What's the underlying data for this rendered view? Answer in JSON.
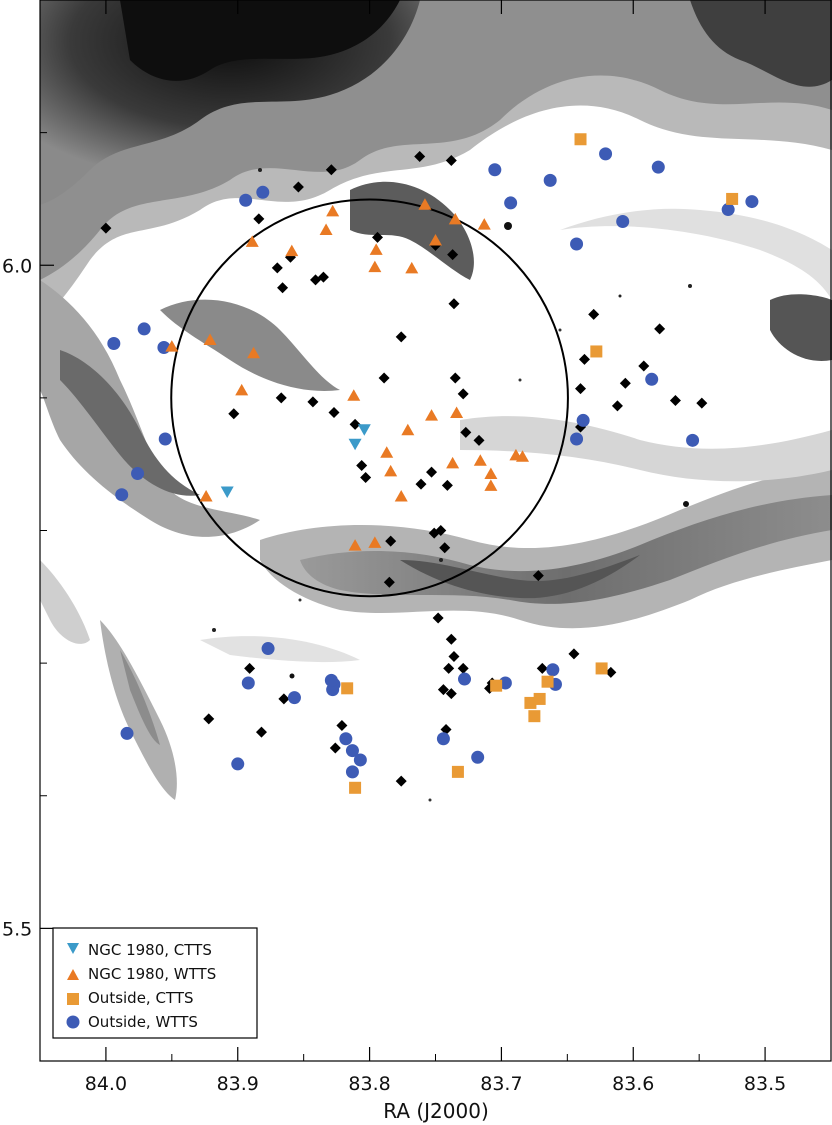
{
  "chart_data": {
    "type": "scatter",
    "title": "",
    "xlabel": "RA (J2000)",
    "ylabel": "",
    "xlim": [
      84.05,
      83.45
    ],
    "ylim": [
      6.2,
      5.4
    ],
    "x_ticks": [
      {
        "value": 84.0,
        "label": "84.0"
      },
      {
        "value": 83.9,
        "label": "83.9"
      },
      {
        "value": 83.8,
        "label": "83.8"
      },
      {
        "value": 83.7,
        "label": "83.7"
      },
      {
        "value": 83.6,
        "label": "83.6"
      },
      {
        "value": 83.5,
        "label": "83.5"
      }
    ],
    "y_ticks": [
      {
        "value": 5.5,
        "label": "5.5"
      },
      {
        "value": 6.0,
        "label": "6.0"
      }
    ],
    "grid": false,
    "background": "grayscale nebula image",
    "circle": {
      "center_x": 83.8,
      "center_y": 5.9,
      "radius_deg": 0.15
    },
    "legend": {
      "position": "bottom-left",
      "entries": [
        "NGC 1980, CTTS",
        "NGC 1980, WTTS",
        "Outside, CTTS",
        "Outside, WTTS"
      ]
    },
    "colors": {
      "ctts_ngc": "#3b9ac9",
      "wtts_ngc": "#e97a24",
      "ctts_out": "#e99a35",
      "wtts_out": "#3d5bb5",
      "other": "#000000"
    },
    "series": [
      {
        "name": "NGC 1980, CTTS",
        "marker": "triangle-down",
        "color": "#3b9ac9",
        "points": [
          [
            83.908,
            5.829
          ],
          [
            83.811,
            5.865
          ],
          [
            83.804,
            5.876
          ]
        ]
      },
      {
        "name": "NGC 1980, WTTS",
        "marker": "triangle-up",
        "color": "#e97a24",
        "points": [
          [
            83.924,
            5.826
          ],
          [
            83.811,
            5.789
          ],
          [
            83.796,
            5.791
          ],
          [
            83.776,
            5.826
          ],
          [
            83.784,
            5.845
          ],
          [
            83.787,
            5.859
          ],
          [
            83.771,
            5.876
          ],
          [
            83.753,
            5.887
          ],
          [
            83.737,
            5.851
          ],
          [
            83.716,
            5.853
          ],
          [
            83.708,
            5.834
          ],
          [
            83.708,
            5.843
          ],
          [
            83.689,
            5.857
          ],
          [
            83.684,
            5.856
          ],
          [
            83.734,
            5.889
          ],
          [
            83.812,
            5.902
          ],
          [
            83.897,
            5.906
          ],
          [
            83.95,
            5.939
          ],
          [
            83.888,
            5.934
          ],
          [
            83.921,
            5.944
          ],
          [
            83.796,
            5.999
          ],
          [
            83.768,
            5.998
          ],
          [
            83.859,
            6.011
          ],
          [
            83.795,
            6.012
          ],
          [
            83.889,
            6.018
          ],
          [
            83.75,
            6.019
          ],
          [
            83.833,
            6.027
          ],
          [
            83.713,
            6.031
          ],
          [
            83.735,
            6.035
          ],
          [
            83.828,
            6.041
          ],
          [
            83.758,
            6.046
          ]
        ]
      },
      {
        "name": "Outside, CTTS",
        "marker": "square",
        "color": "#e99a35",
        "points": [
          [
            83.811,
            5.606
          ],
          [
            83.733,
            5.618
          ],
          [
            83.675,
            5.66
          ],
          [
            83.678,
            5.67
          ],
          [
            83.671,
            5.673
          ],
          [
            83.704,
            5.683
          ],
          [
            83.817,
            5.681
          ],
          [
            83.665,
            5.686
          ],
          [
            83.624,
            5.696
          ],
          [
            83.628,
            5.935
          ],
          [
            83.525,
            6.05
          ],
          [
            83.64,
            6.095
          ]
        ]
      },
      {
        "name": "Outside, WTTS",
        "marker": "circle",
        "color": "#3d5bb5",
        "points": [
          [
            83.813,
            5.618
          ],
          [
            83.807,
            5.627
          ],
          [
            83.813,
            5.634
          ],
          [
            83.718,
            5.629
          ],
          [
            83.9,
            5.624
          ],
          [
            83.818,
            5.643
          ],
          [
            83.744,
            5.643
          ],
          [
            83.984,
            5.647
          ],
          [
            83.857,
            5.674
          ],
          [
            83.828,
            5.68
          ],
          [
            83.827,
            5.684
          ],
          [
            83.829,
            5.687
          ],
          [
            83.892,
            5.685
          ],
          [
            83.697,
            5.685
          ],
          [
            83.728,
            5.688
          ],
          [
            83.659,
            5.684
          ],
          [
            83.661,
            5.695
          ],
          [
            83.877,
            5.711
          ],
          [
            83.988,
            5.827
          ],
          [
            83.976,
            5.843
          ],
          [
            83.955,
            5.869
          ],
          [
            83.643,
            5.869
          ],
          [
            83.555,
            5.868
          ],
          [
            83.638,
            5.883
          ],
          [
            83.586,
            5.914
          ],
          [
            83.956,
            5.938
          ],
          [
            83.994,
            5.941
          ],
          [
            83.971,
            5.952
          ],
          [
            83.643,
            6.016
          ],
          [
            83.608,
            6.033
          ],
          [
            83.528,
            6.042
          ],
          [
            83.51,
            6.048
          ],
          [
            83.693,
            6.047
          ],
          [
            83.894,
            6.049
          ],
          [
            83.881,
            6.055
          ],
          [
            83.663,
            6.064
          ],
          [
            83.705,
            6.072
          ],
          [
            83.581,
            6.074
          ],
          [
            83.621,
            6.084
          ]
        ]
      },
      {
        "name": "",
        "marker": "diamond",
        "color": "#000000",
        "points": [
          [
            83.776,
            5.611
          ],
          [
            83.826,
            5.636
          ],
          [
            83.922,
            5.658
          ],
          [
            83.882,
            5.648
          ],
          [
            83.821,
            5.653
          ],
          [
            83.742,
            5.65
          ],
          [
            83.865,
            5.673
          ],
          [
            83.738,
            5.677
          ],
          [
            83.707,
            5.685
          ],
          [
            83.744,
            5.68
          ],
          [
            83.709,
            5.681
          ],
          [
            83.891,
            5.696
          ],
          [
            83.669,
            5.696
          ],
          [
            83.617,
            5.693
          ],
          [
            83.74,
            5.696
          ],
          [
            83.736,
            5.705
          ],
          [
            83.729,
            5.696
          ],
          [
            83.738,
            5.718
          ],
          [
            83.748,
            5.734
          ],
          [
            83.645,
            5.707
          ],
          [
            83.785,
            5.761
          ],
          [
            83.672,
            5.766
          ],
          [
            83.743,
            5.787
          ],
          [
            83.746,
            5.8
          ],
          [
            83.806,
            5.849
          ],
          [
            83.761,
            5.835
          ],
          [
            83.803,
            5.84
          ],
          [
            83.784,
            5.792
          ],
          [
            83.751,
            5.798
          ],
          [
            83.741,
            5.834
          ],
          [
            83.717,
            5.868
          ],
          [
            83.727,
            5.874
          ],
          [
            83.753,
            5.844
          ],
          [
            83.811,
            5.88
          ],
          [
            83.827,
            5.889
          ],
          [
            83.903,
            5.888
          ],
          [
            83.789,
            5.915
          ],
          [
            83.867,
            5.9
          ],
          [
            83.843,
            5.897
          ],
          [
            83.776,
            5.946
          ],
          [
            83.729,
            5.903
          ],
          [
            83.735,
            5.915
          ],
          [
            83.64,
            5.878
          ],
          [
            83.612,
            5.894
          ],
          [
            83.568,
            5.898
          ],
          [
            83.548,
            5.896
          ],
          [
            83.58,
            5.952
          ],
          [
            83.637,
            5.929
          ],
          [
            83.64,
            5.907
          ],
          [
            83.606,
            5.911
          ],
          [
            83.592,
            5.924
          ],
          [
            83.63,
            5.963
          ],
          [
            83.736,
            5.971
          ],
          [
            83.866,
            5.983
          ],
          [
            83.841,
            5.989
          ],
          [
            83.835,
            5.991
          ],
          [
            83.87,
            5.998
          ],
          [
            83.86,
            6.006
          ],
          [
            83.884,
            6.035
          ],
          [
            84.0,
            6.028
          ],
          [
            83.737,
            6.008
          ],
          [
            83.794,
            6.021
          ],
          [
            83.75,
            6.015
          ],
          [
            83.854,
            6.059
          ],
          [
            83.829,
            6.072
          ],
          [
            83.762,
            6.082
          ],
          [
            83.738,
            6.079
          ]
        ]
      }
    ]
  }
}
